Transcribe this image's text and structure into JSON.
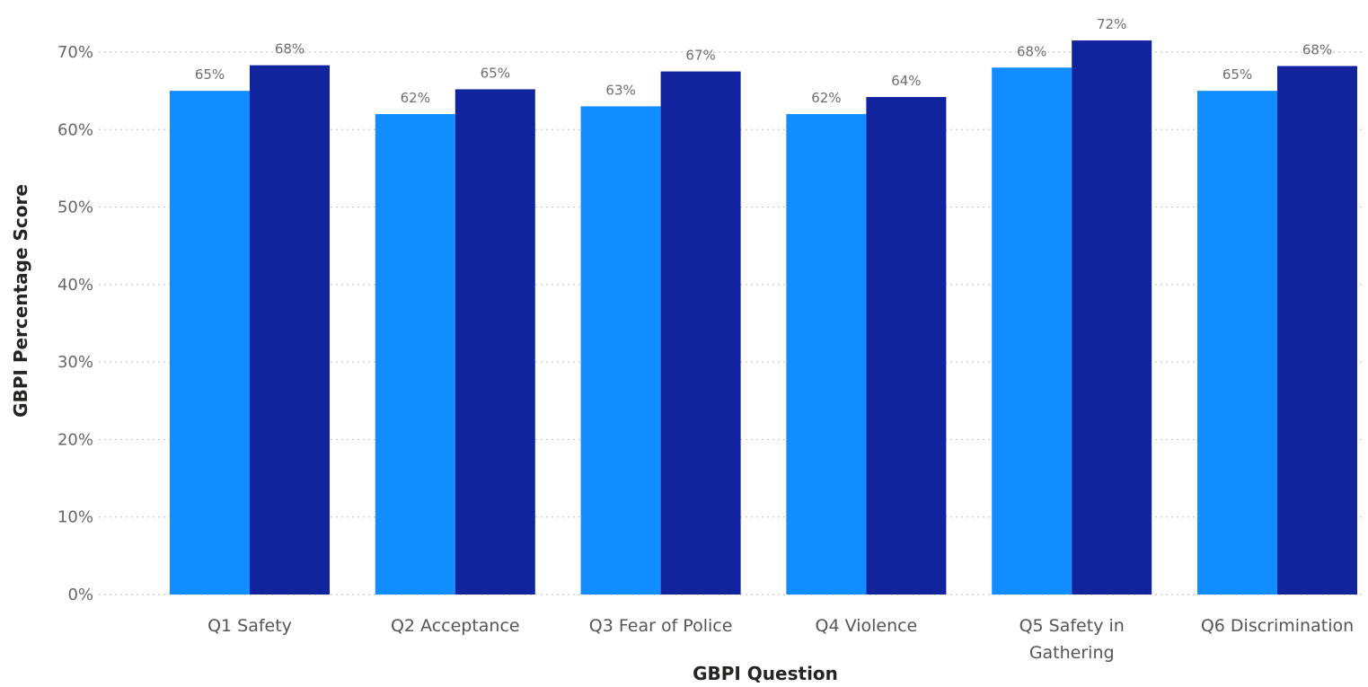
{
  "chart_data": {
    "type": "bar",
    "categories": [
      [
        "Q1 Safety"
      ],
      [
        "Q2 Acceptance"
      ],
      [
        "Q3 Fear of Police"
      ],
      [
        "Q4 Violence"
      ],
      [
        "Q5 Safety in",
        "Gathering"
      ],
      [
        "Q6 Discrimination"
      ]
    ],
    "series": [
      {
        "values": [
          65,
          62,
          63,
          62,
          68,
          65
        ],
        "labels": [
          "65%",
          "62%",
          "63%",
          "62%",
          "68%",
          "65%"
        ],
        "color": "#118DFF"
      },
      {
        "values": [
          68.3,
          65.2,
          67.5,
          64.2,
          71.5,
          68.2
        ],
        "labels": [
          "68%",
          "65%",
          "67%",
          "64%",
          "72%",
          "68%"
        ],
        "color": "#12239E"
      }
    ],
    "xlabel": "GBPI Question",
    "ylabel": "GBPI Percentage Score",
    "ylim": [
      0,
      70
    ],
    "yticks": [
      0,
      10,
      20,
      30,
      40,
      50,
      60,
      70
    ],
    "ytick_labels": [
      "0%",
      "10%",
      "20%",
      "30%",
      "40%",
      "50%",
      "60%",
      "70%"
    ],
    "grid": true,
    "legend": "none"
  }
}
